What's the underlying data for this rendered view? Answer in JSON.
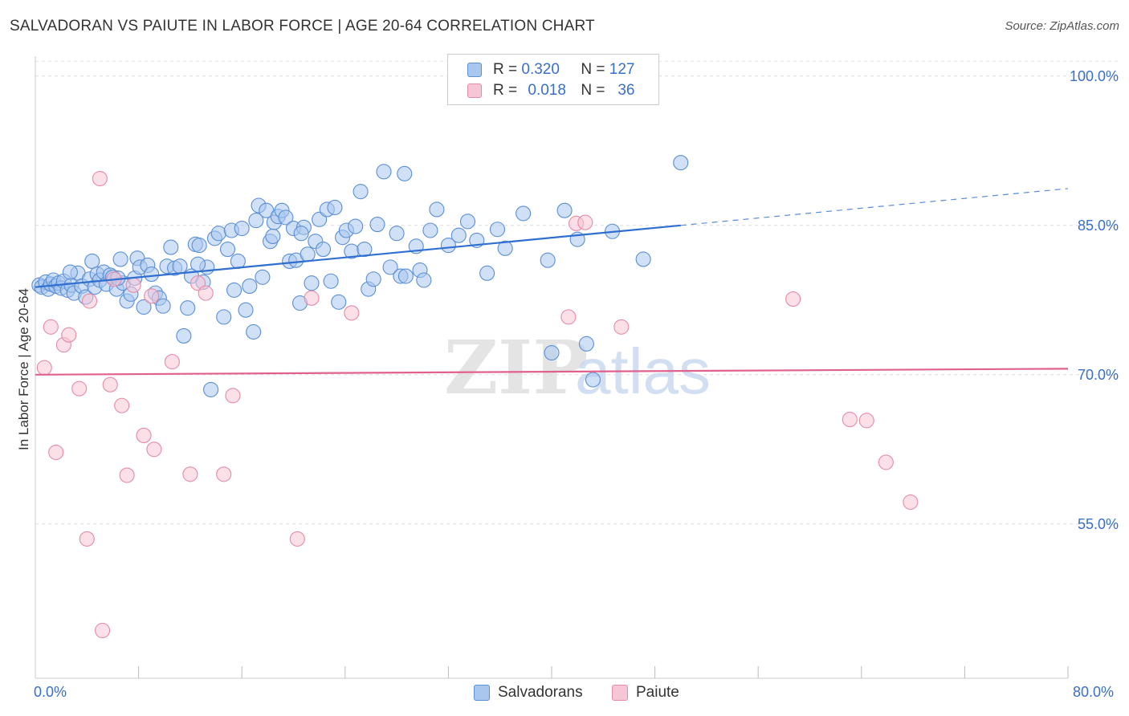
{
  "title": "SALVADORAN VS PAIUTE IN LABOR FORCE | AGE 20-64 CORRELATION CHART",
  "source": "Source: ZipAtlas.com",
  "legend": {
    "r_label": "R =",
    "n_label": "N =",
    "rows": [
      {
        "r": "0.320",
        "n": "127",
        "color": "#a9c6ef",
        "border": "#5b8fd6"
      },
      {
        "r": "0.018",
        "n": "36",
        "color": "#f7c6d6",
        "border": "#e68aa8"
      }
    ]
  },
  "bottom_legend": [
    {
      "label": "Salvadorans",
      "color": "#a9c6ef",
      "border": "#5b8fd6"
    },
    {
      "label": "Paiute",
      "color": "#f7c6d6",
      "border": "#e68aa8"
    }
  ],
  "watermark": {
    "zip": "ZIP",
    "atlas": "atlas"
  },
  "chart_data": {
    "type": "scatter",
    "title": "SALVADORAN VS PAIUTE IN LABOR FORCE | AGE 20-64 CORRELATION CHART",
    "xlabel": "",
    "ylabel": "In Labor Force | Age 20-64",
    "xlim": [
      0,
      80
    ],
    "ylim": [
      39.5,
      102
    ],
    "x_tick_labels": [
      {
        "value": 0,
        "label": "0.0%"
      },
      {
        "value": 80,
        "label": "80.0%"
      }
    ],
    "y_tick_labels": [
      {
        "value": 55,
        "label": "55.0%"
      },
      {
        "value": 70,
        "label": "70.0%"
      },
      {
        "value": 85,
        "label": "85.0%"
      },
      {
        "value": 100,
        "label": "100.0%"
      }
    ],
    "grid": true,
    "legend_position": "top-center",
    "series": [
      {
        "name": "Salvadorans",
        "color": "#5b8fd6",
        "fill": "#a9c6ef",
        "points": [
          [
            0.3,
            79.0
          ],
          [
            0.5,
            78.8
          ],
          [
            0.8,
            79.3
          ],
          [
            1.0,
            78.6
          ],
          [
            1.2,
            79.1
          ],
          [
            1.4,
            79.5
          ],
          [
            1.6,
            78.9
          ],
          [
            1.8,
            79.2
          ],
          [
            2.0,
            78.7
          ],
          [
            2.2,
            79.4
          ],
          [
            2.5,
            78.5
          ],
          [
            2.8,
            79.0
          ],
          [
            3.0,
            78.2
          ],
          [
            3.3,
            80.2
          ],
          [
            3.6,
            78.9
          ],
          [
            3.9,
            77.8
          ],
          [
            4.2,
            79.6
          ],
          [
            4.4,
            81.4
          ],
          [
            4.6,
            78.8
          ],
          [
            4.8,
            80.1
          ],
          [
            5.0,
            79.5
          ],
          [
            5.3,
            80.3
          ],
          [
            5.5,
            79.1
          ],
          [
            5.8,
            80.0
          ],
          [
            6.0,
            79.8
          ],
          [
            6.3,
            78.6
          ],
          [
            6.6,
            81.6
          ],
          [
            6.8,
            79.2
          ],
          [
            7.1,
            77.4
          ],
          [
            7.4,
            78.1
          ],
          [
            7.7,
            79.7
          ],
          [
            7.9,
            81.7
          ],
          [
            8.1,
            80.8
          ],
          [
            8.4,
            76.8
          ],
          [
            8.7,
            81.0
          ],
          [
            9.0,
            80.1
          ],
          [
            9.3,
            78.2
          ],
          [
            9.6,
            77.7
          ],
          [
            9.9,
            76.9
          ],
          [
            10.2,
            80.9
          ],
          [
            10.5,
            82.8
          ],
          [
            10.8,
            80.7
          ],
          [
            11.2,
            80.9
          ],
          [
            11.5,
            73.9
          ],
          [
            11.8,
            76.7
          ],
          [
            12.1,
            79.9
          ],
          [
            12.4,
            83.1
          ],
          [
            12.7,
            83.0
          ],
          [
            13.0,
            79.3
          ],
          [
            13.3,
            80.8
          ],
          [
            13.6,
            68.5
          ],
          [
            13.9,
            83.7
          ],
          [
            14.2,
            84.2
          ],
          [
            14.6,
            75.8
          ],
          [
            14.9,
            82.6
          ],
          [
            15.2,
            84.5
          ],
          [
            15.4,
            78.5
          ],
          [
            15.7,
            81.4
          ],
          [
            16.0,
            84.7
          ],
          [
            16.3,
            76.5
          ],
          [
            16.6,
            78.9
          ],
          [
            16.9,
            74.3
          ],
          [
            17.1,
            85.5
          ],
          [
            17.3,
            87.0
          ],
          [
            17.6,
            79.8
          ],
          [
            17.9,
            86.5
          ],
          [
            18.2,
            83.4
          ],
          [
            18.5,
            85.3
          ],
          [
            18.8,
            85.9
          ],
          [
            19.1,
            86.5
          ],
          [
            19.4,
            85.8
          ],
          [
            19.7,
            81.4
          ],
          [
            20.0,
            84.7
          ],
          [
            20.2,
            81.5
          ],
          [
            20.5,
            77.2
          ],
          [
            20.8,
            84.8
          ],
          [
            21.1,
            82.1
          ],
          [
            21.4,
            79.2
          ],
          [
            21.7,
            83.4
          ],
          [
            22.0,
            85.6
          ],
          [
            22.3,
            82.6
          ],
          [
            22.6,
            86.6
          ],
          [
            22.9,
            79.4
          ],
          [
            23.2,
            86.8
          ],
          [
            23.5,
            77.3
          ],
          [
            23.8,
            83.8
          ],
          [
            24.1,
            84.5
          ],
          [
            24.5,
            82.4
          ],
          [
            24.8,
            84.9
          ],
          [
            25.2,
            88.4
          ],
          [
            25.5,
            82.6
          ],
          [
            25.8,
            78.6
          ],
          [
            26.2,
            79.6
          ],
          [
            26.5,
            85.1
          ],
          [
            27.0,
            90.4
          ],
          [
            27.5,
            80.8
          ],
          [
            28.0,
            84.2
          ],
          [
            28.3,
            79.9
          ],
          [
            28.7,
            79.9
          ],
          [
            29.5,
            82.9
          ],
          [
            29.8,
            80.5
          ],
          [
            30.1,
            79.5
          ],
          [
            30.6,
            84.5
          ],
          [
            31.1,
            86.6
          ],
          [
            32.0,
            83.0
          ],
          [
            32.8,
            84.0
          ],
          [
            34.2,
            83.5
          ],
          [
            35.8,
            84.6
          ],
          [
            36.4,
            82.7
          ],
          [
            37.8,
            86.2
          ],
          [
            39.7,
            81.5
          ],
          [
            41.0,
            86.5
          ],
          [
            42.7,
            73.1
          ],
          [
            43.2,
            69.5
          ],
          [
            44.7,
            84.4
          ],
          [
            47.1,
            81.6
          ],
          [
            50.0,
            91.3
          ],
          [
            42.0,
            83.6
          ],
          [
            35.0,
            80.2
          ],
          [
            33.5,
            85.4
          ],
          [
            28.6,
            90.2
          ],
          [
            20.6,
            84.2
          ],
          [
            18.4,
            83.9
          ],
          [
            12.6,
            81.1
          ],
          [
            6.4,
            79.7
          ],
          [
            2.7,
            80.3
          ],
          [
            40.0,
            72.2
          ]
        ],
        "trend": {
          "x_start": 0,
          "y_start": 78.8,
          "x_solid_end": 50,
          "y_solid_end": 85.0,
          "x_end": 80,
          "y_end": 88.7,
          "extrapolated_dashed": true
        }
      },
      {
        "name": "Paiute",
        "color": "#e68aa8",
        "fill": "#f7c6d6",
        "points": [
          [
            0.7,
            70.7
          ],
          [
            1.2,
            74.8
          ],
          [
            1.6,
            62.2
          ],
          [
            2.2,
            73.0
          ],
          [
            2.6,
            74.0
          ],
          [
            3.4,
            68.6
          ],
          [
            4.0,
            53.5
          ],
          [
            4.2,
            77.4
          ],
          [
            5.0,
            89.7
          ],
          [
            5.2,
            44.3
          ],
          [
            5.8,
            69.0
          ],
          [
            6.1,
            79.6
          ],
          [
            6.7,
            66.9
          ],
          [
            7.1,
            59.9
          ],
          [
            7.6,
            79.0
          ],
          [
            8.4,
            63.9
          ],
          [
            9.0,
            77.9
          ],
          [
            9.2,
            62.5
          ],
          [
            10.6,
            71.3
          ],
          [
            12.0,
            60.0
          ],
          [
            12.6,
            79.2
          ],
          [
            13.2,
            78.2
          ],
          [
            14.6,
            60.0
          ],
          [
            15.3,
            67.9
          ],
          [
            20.3,
            53.5
          ],
          [
            21.4,
            77.7
          ],
          [
            24.5,
            76.2
          ],
          [
            41.3,
            75.8
          ],
          [
            41.9,
            85.2
          ],
          [
            42.6,
            85.3
          ],
          [
            45.4,
            74.8
          ],
          [
            58.7,
            77.6
          ],
          [
            63.1,
            65.5
          ],
          [
            64.4,
            65.4
          ],
          [
            65.9,
            61.2
          ],
          [
            67.8,
            57.2
          ]
        ],
        "trend": {
          "x_start": 0,
          "y_start": 70.0,
          "x_end": 80,
          "y_end": 70.6
        }
      }
    ]
  }
}
